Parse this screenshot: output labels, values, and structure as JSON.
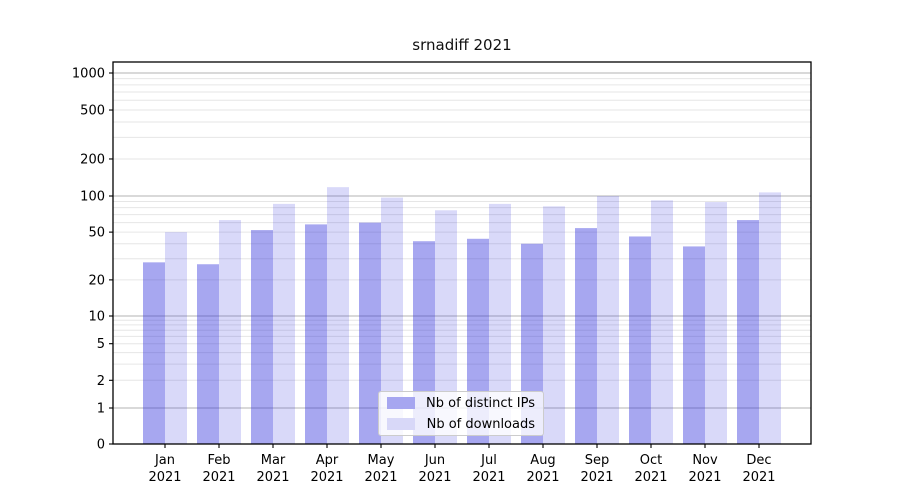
{
  "title": "srnadiff 2021",
  "chart_data": {
    "type": "bar",
    "title": "srnadiff 2021",
    "categories": [
      "Jan",
      "Feb",
      "Mar",
      "Apr",
      "May",
      "Jun",
      "Jul",
      "Aug",
      "Sep",
      "Oct",
      "Nov",
      "Dec"
    ],
    "x_year_label": "2021",
    "series": [
      {
        "name": "Nb of distinct IPs",
        "color": "#a6a6f0",
        "fill": "rgba(45,45,220,0.42)",
        "values": [
          28,
          27,
          52,
          58,
          60,
          42,
          44,
          40,
          54,
          46,
          38,
          63
        ]
      },
      {
        "name": "Nb of downloads",
        "color": "#d8d8f8",
        "fill": "rgba(45,45,220,0.18)",
        "values": [
          50,
          63,
          86,
          118,
          97,
          76,
          86,
          82,
          100,
          92,
          89,
          107
        ]
      }
    ],
    "yticks": [
      0,
      1,
      2,
      5,
      10,
      20,
      50,
      100,
      200,
      500,
      1000
    ],
    "yscale": "symlog (linear 0-1, log above)",
    "ylim": [
      0,
      1230
    ],
    "grid": {
      "major": true,
      "minor": true
    },
    "legend_position": "lower center, inside axes",
    "colors": {
      "grid_major": "#b3b3b3",
      "grid_minor": "#e6e6e6",
      "axis": "#000000",
      "text": "#000000"
    }
  }
}
